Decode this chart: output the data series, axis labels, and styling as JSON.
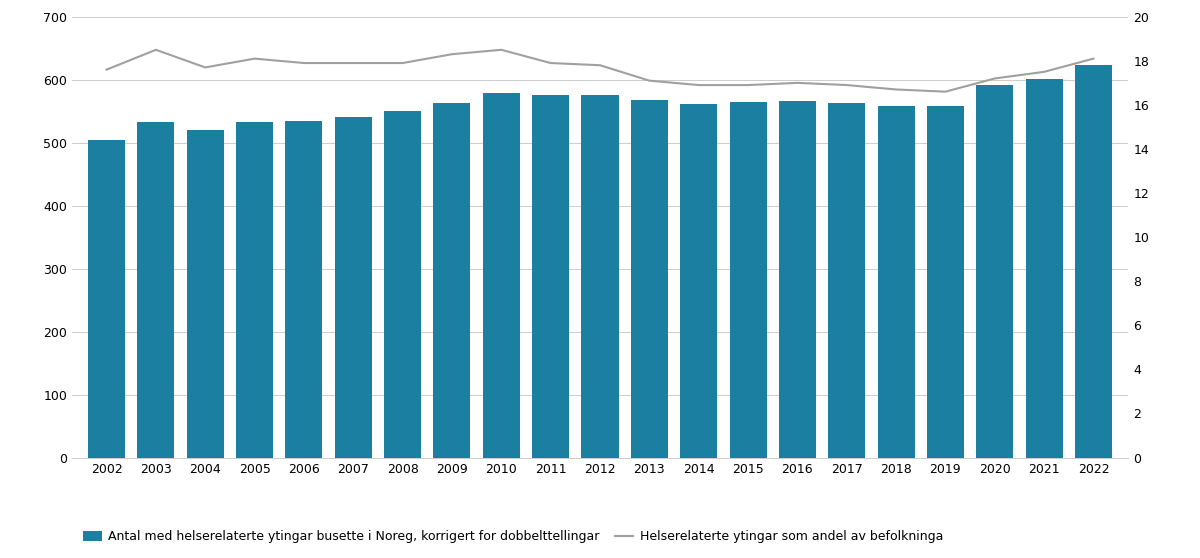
{
  "years": [
    2002,
    2003,
    2004,
    2005,
    2006,
    2007,
    2008,
    2009,
    2010,
    2011,
    2012,
    2013,
    2014,
    2015,
    2016,
    2017,
    2018,
    2019,
    2020,
    2021,
    2022
  ],
  "bar_values": [
    505,
    533,
    520,
    533,
    535,
    540,
    550,
    563,
    579,
    576,
    575,
    567,
    562,
    564,
    566,
    563,
    559,
    559,
    592,
    601,
    624
  ],
  "line_values": [
    17.6,
    18.5,
    17.7,
    18.1,
    17.9,
    17.9,
    17.9,
    18.3,
    18.5,
    17.9,
    17.8,
    17.1,
    16.9,
    16.9,
    17.0,
    16.9,
    16.7,
    16.6,
    17.2,
    17.5,
    18.1
  ],
  "bar_color": "#1a7fa0",
  "line_color": "#a0a0a0",
  "ylim_left": [
    0,
    700
  ],
  "ylim_right": [
    0,
    20
  ],
  "yticks_left": [
    0,
    100,
    200,
    300,
    400,
    500,
    600,
    700
  ],
  "yticks_right": [
    0,
    2,
    4,
    6,
    8,
    10,
    12,
    14,
    16,
    18,
    20
  ],
  "legend_bar_label": "Antal med helserelaterte ytingar busette i Noreg, korrigert for dobbelttellingar",
  "legend_line_label": "Helserelaterte ytingar som andel av befolkninga",
  "bg_color": "#ffffff",
  "grid_color": "#cccccc",
  "bar_width": 0.75,
  "figsize": [
    12.0,
    5.58
  ],
  "dpi": 100
}
